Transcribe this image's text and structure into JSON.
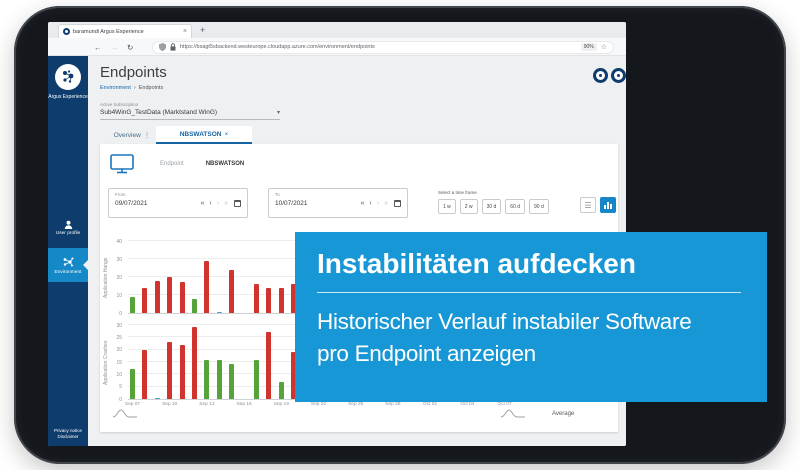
{
  "browser": {
    "tab_title": "baramundi Argus Experience",
    "tab_close": "×",
    "new_tab": "+",
    "back": "←",
    "forward": "→",
    "reload": "↻",
    "url": "https://bsagt5sbackend.westeurope.cloudapp.azure.com/environment/endpoints",
    "zoom_badge": "90%",
    "bookmark_star": "☆"
  },
  "sidebar": {
    "brand": "Argus Experience",
    "items": [
      {
        "label": "User profile",
        "icon": "user-icon",
        "active": false
      },
      {
        "label": "Environment",
        "icon": "network-icon",
        "active": true
      }
    ],
    "footer_links": [
      "Privacy notice",
      "Disclaimer"
    ]
  },
  "page": {
    "title": "Endpoints",
    "breadcrumb": {
      "parent": "Environment",
      "separator": "›",
      "current": "Endpoints"
    }
  },
  "subscription": {
    "label": "Active Subscription",
    "value": "Sub4WinG_TestData (Marktstand WinG)"
  },
  "tabs": {
    "overview": "Overview",
    "endpoint_tab": "NBSWATSON"
  },
  "endpoint": {
    "label": "Endpoint",
    "name": "NBSWATSON"
  },
  "filters": {
    "from": {
      "label": "From",
      "value": "09/07/2021"
    },
    "to": {
      "label": "To",
      "value": "10/07/2021"
    },
    "timeframe_label": "Select a time frame",
    "timeframes": [
      "1 w",
      "2 w",
      "30 d",
      "60 d",
      "90 d"
    ]
  },
  "chart_data": [
    {
      "type": "bar",
      "ylabel": "Application Hangs",
      "ylim": [
        0,
        40
      ],
      "yticks": [
        0,
        10,
        20,
        30,
        40
      ],
      "x": [
        "Sep 07",
        "Sep 10",
        "Sep 13",
        "Sep 16",
        "Sep 19",
        "Sep 22",
        "Sep 25",
        "Sep 28",
        "Oct 01",
        "Oct 04",
        "Oct 07"
      ],
      "x_step_days": 3,
      "grid": true,
      "bars": [
        {
          "day": 0,
          "value": 9,
          "color": "green"
        },
        {
          "day": 1,
          "value": 14,
          "color": "red"
        },
        {
          "day": 2,
          "value": 18,
          "color": "red"
        },
        {
          "day": 3,
          "value": 20,
          "color": "red"
        },
        {
          "day": 4,
          "value": 17,
          "color": "red"
        },
        {
          "day": 5,
          "value": 8,
          "color": "green"
        },
        {
          "day": 6,
          "value": 29,
          "color": "red"
        },
        {
          "day": 7,
          "value": 0.5,
          "color": "blue"
        },
        {
          "day": 8,
          "value": 24,
          "color": "red"
        },
        {
          "day": 10,
          "value": 16,
          "color": "red"
        },
        {
          "day": 11,
          "value": 14,
          "color": "red"
        },
        {
          "day": 12,
          "value": 14,
          "color": "red"
        },
        {
          "day": 13,
          "value": 16,
          "color": "red"
        }
      ]
    },
    {
      "type": "bar",
      "ylabel": "Application Crashes",
      "ylim": [
        0,
        30
      ],
      "yticks": [
        0,
        5,
        10,
        15,
        20,
        25,
        30
      ],
      "x": [
        "Sep 07",
        "Sep 10",
        "Sep 13",
        "Sep 16",
        "Sep 19",
        "Sep 22",
        "Sep 25",
        "Sep 28",
        "Oct 01",
        "Oct 04",
        "Oct 07"
      ],
      "x_step_days": 3,
      "grid": true,
      "bars": [
        {
          "day": 0,
          "value": 12,
          "color": "green"
        },
        {
          "day": 1,
          "value": 20,
          "color": "red"
        },
        {
          "day": 2,
          "value": 0.5,
          "color": "blue"
        },
        {
          "day": 3,
          "value": 23,
          "color": "red"
        },
        {
          "day": 4,
          "value": 22,
          "color": "red"
        },
        {
          "day": 5,
          "value": 29,
          "color": "red"
        },
        {
          "day": 6,
          "value": 16,
          "color": "green"
        },
        {
          "day": 7,
          "value": 16,
          "color": "green"
        },
        {
          "day": 8,
          "value": 14,
          "color": "green"
        },
        {
          "day": 10,
          "value": 16,
          "color": "green"
        },
        {
          "day": 11,
          "value": 27,
          "color": "red"
        },
        {
          "day": 12,
          "value": 7,
          "color": "green"
        },
        {
          "day": 13,
          "value": 19,
          "color": "red"
        }
      ]
    }
  ],
  "average_label": "Average",
  "overlay": {
    "title": "Instabilitäten aufdecken",
    "subtitle_lines": [
      "Historischer Verlauf instabiler Software",
      "pro Endpoint anzeigen"
    ],
    "color": "#1897d6"
  },
  "colors": {
    "red": "#d0342c",
    "green": "#56a339",
    "blue": "#4a98d3",
    "accent": "#1565a5",
    "sidebar": "#0d3c6d",
    "sidebar_active": "#1588c8"
  }
}
